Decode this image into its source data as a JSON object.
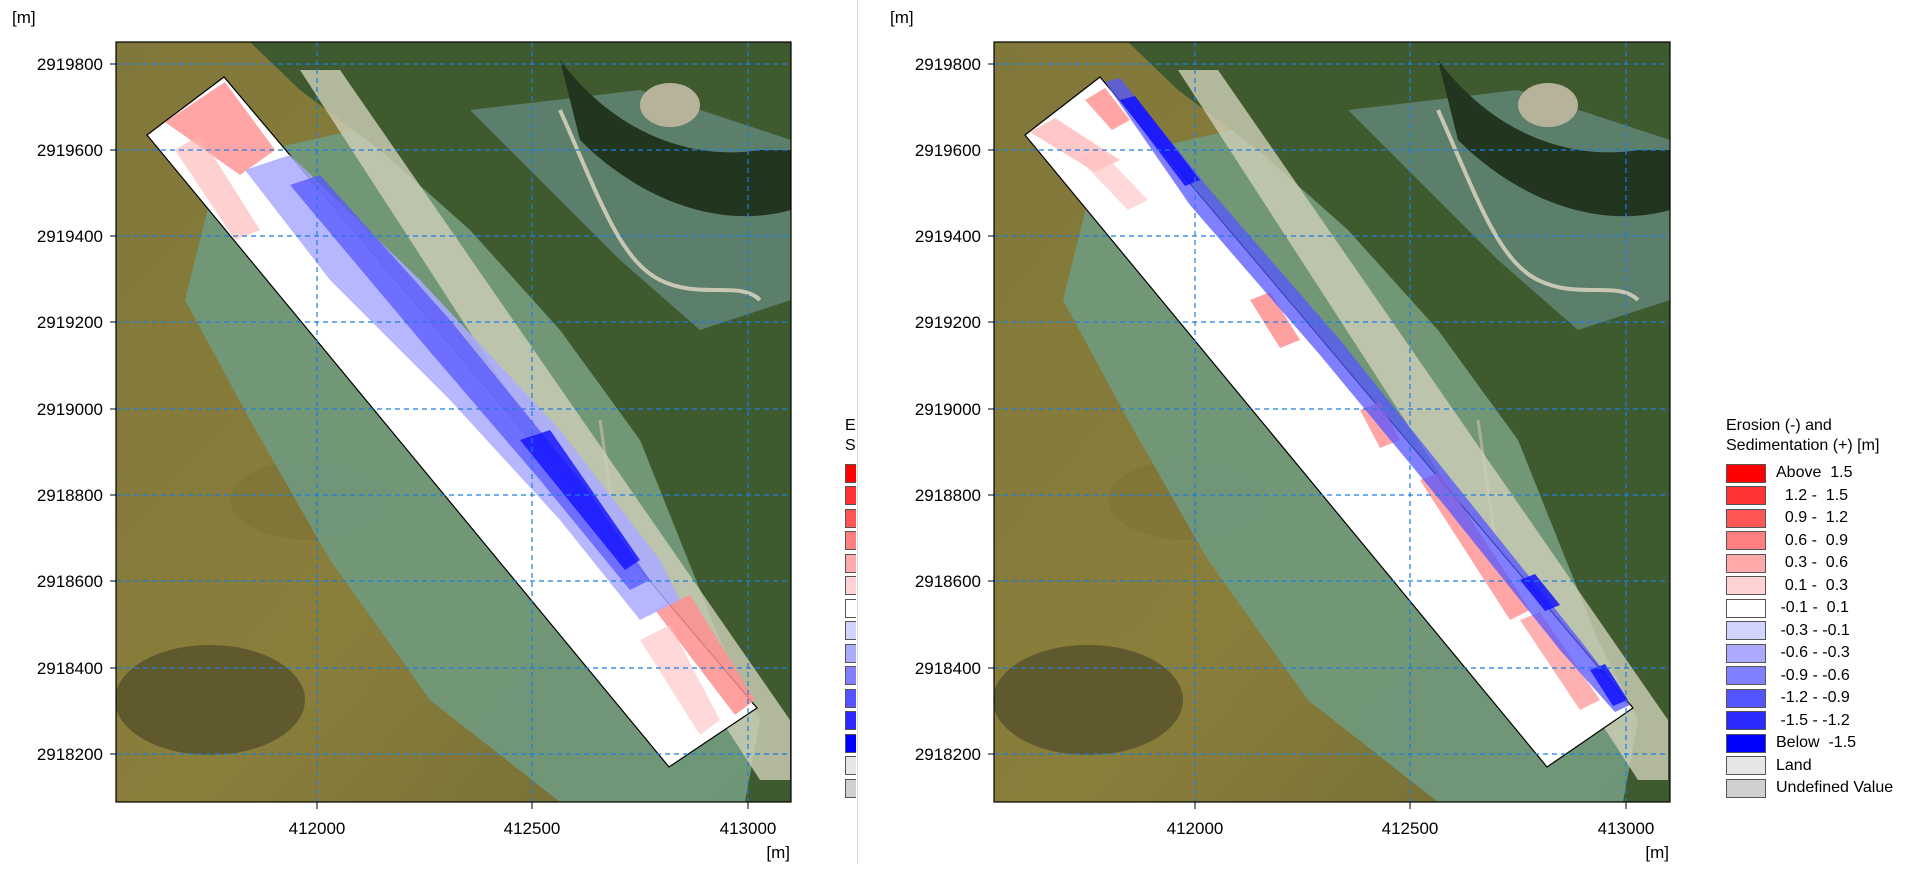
{
  "unit_label": "[m]",
  "maps": [
    {
      "y_ticks": [
        "2919800",
        "2919600",
        "2919400",
        "2919200",
        "2919000",
        "2918800",
        "2918600",
        "2918400",
        "2918200"
      ],
      "x_ticks": [
        "412000",
        "412500",
        "413000"
      ],
      "x_unit": "[m]",
      "y_unit": "[m]"
    },
    {
      "y_ticks": [
        "2919800",
        "2919600",
        "2919400",
        "2919200",
        "2919000",
        "2918800",
        "2918600",
        "2918400",
        "2918200"
      ],
      "x_ticks": [
        "412000",
        "412500",
        "413000"
      ],
      "x_unit": "[m]",
      "y_unit": "[m]"
    }
  ],
  "legend": {
    "title_line1": "Erosion (-) and",
    "title_line2": "Sedimentation (+) [m]",
    "items": [
      {
        "label": "Above  1.5",
        "color": "#ff0000"
      },
      {
        "label": "  1.2 -  1.5",
        "color": "#ff3333"
      },
      {
        "label": "  0.9 -  1.2",
        "color": "#ff5555"
      },
      {
        "label": "  0.6 -  0.9",
        "color": "#ff7f7f"
      },
      {
        "label": "  0.3 -  0.6",
        "color": "#ffaaaa"
      },
      {
        "label": "  0.1 -  0.3",
        "color": "#ffd3d3"
      },
      {
        "label": " -0.1 -  0.1",
        "color": "#ffffff"
      },
      {
        "label": " -0.3 - -0.1",
        "color": "#d3d3ff"
      },
      {
        "label": " -0.6 - -0.3",
        "color": "#aaaaff"
      },
      {
        "label": " -0.9 - -0.6",
        "color": "#7f7fff"
      },
      {
        "label": " -1.2 - -0.9",
        "color": "#5555ff"
      },
      {
        "label": " -1.5 - -1.2",
        "color": "#2a2aff"
      },
      {
        "label": "Below  -1.5",
        "color": "#0000ff"
      },
      {
        "label": "Land",
        "color": "#e6e6e6"
      },
      {
        "label": "Undefined Value",
        "color": "#d0d0d0"
      }
    ]
  }
}
